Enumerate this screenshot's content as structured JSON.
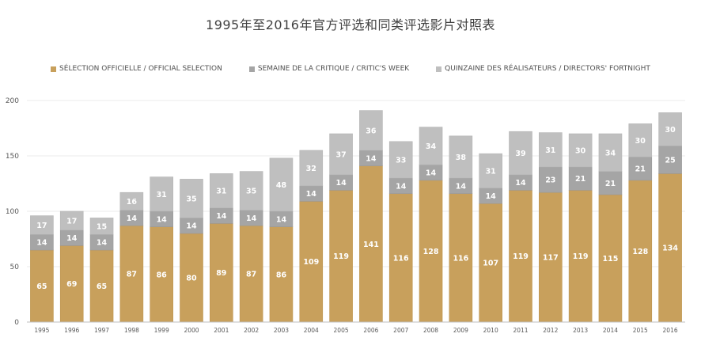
{
  "chart_data": {
    "type": "bar",
    "stacked": true,
    "title": "1995年至2016年官方评选和同类评选影片对照表",
    "xlabel": "",
    "ylabel": "",
    "ylim": [
      0,
      200
    ],
    "yticks": [
      0,
      50,
      100,
      150,
      200
    ],
    "grid": true,
    "legend_position": "top",
    "categories": [
      "1995",
      "1996",
      "1997",
      "1998",
      "1999",
      "2000",
      "2001",
      "2002",
      "2003",
      "2004",
      "2005",
      "2006",
      "2007",
      "2008",
      "2009",
      "2010",
      "2011",
      "2012",
      "2013",
      "2014",
      "2015",
      "2016"
    ],
    "series": [
      {
        "name": "SÉLECTION OFFICIELLE / OFFICIAL SELECTION",
        "color": "#C8A05C",
        "values": [
          65,
          69,
          65,
          87,
          86,
          80,
          89,
          87,
          86,
          109,
          119,
          141,
          116,
          128,
          116,
          107,
          119,
          117,
          119,
          115,
          128,
          134
        ]
      },
      {
        "name": "SEMAINE DE LA CRITIQUE / CRITIC'S WEEK",
        "color": "#A5A5A5",
        "values": [
          14,
          14,
          14,
          14,
          14,
          14,
          14,
          14,
          14,
          14,
          14,
          14,
          14,
          14,
          14,
          14,
          14,
          23,
          21,
          21,
          21,
          25
        ]
      },
      {
        "name": "QUINZAINE DES RÉALISATEURS / DIRECTORS' FORTNIGHT",
        "color": "#BFBFBF",
        "values": [
          17,
          17,
          15,
          16,
          31,
          35,
          31,
          35,
          48,
          32,
          37,
          36,
          33,
          34,
          38,
          31,
          39,
          31,
          30,
          34,
          30,
          30
        ]
      }
    ]
  }
}
